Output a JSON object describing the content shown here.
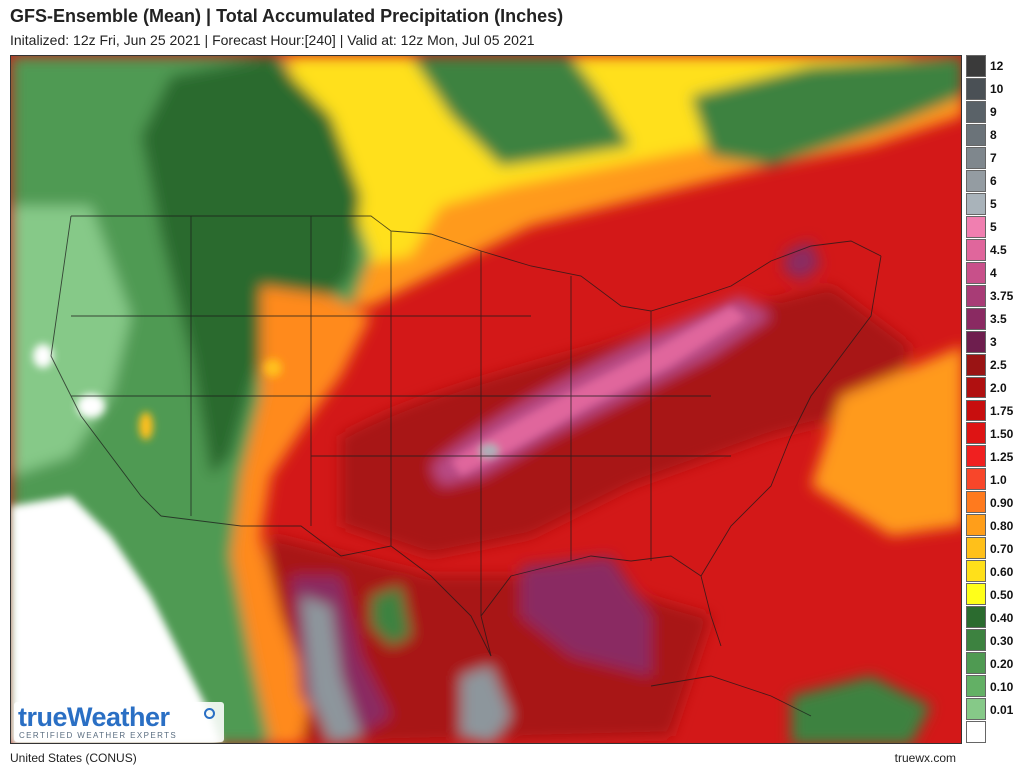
{
  "header": {
    "title": "GFS-Ensemble (Mean) | Total Accumulated Precipitation (Inches)",
    "subtitle": "Initalized: 12z Fri, Jun 25 2021 | Forecast Hour:[240] | Valid at: 12z Mon, Jul 05 2021"
  },
  "legend": [
    {
      "label": "12",
      "color": "#3a3a3a"
    },
    {
      "label": "10",
      "color": "#4a5055"
    },
    {
      "label": "9",
      "color": "#5a6268"
    },
    {
      "label": "8",
      "color": "#6b7379"
    },
    {
      "label": "7",
      "color": "#7f878d"
    },
    {
      "label": "6",
      "color": "#949ca2"
    },
    {
      "label": "5",
      "color": "#a9b3ba"
    },
    {
      "label": "5",
      "color": "#f07fb0"
    },
    {
      "label": "4.5",
      "color": "#e0669c"
    },
    {
      "label": "4",
      "color": "#c8508a"
    },
    {
      "label": "3.75",
      "color": "#a83c76"
    },
    {
      "label": "3.5",
      "color": "#8a2a62"
    },
    {
      "label": "3",
      "color": "#6e1e4e"
    },
    {
      "label": "2.5",
      "color": "#9a1414"
    },
    {
      "label": "2.0",
      "color": "#b01010"
    },
    {
      "label": "1.75",
      "color": "#c80e0e"
    },
    {
      "label": "1.50",
      "color": "#de1414"
    },
    {
      "label": "1.25",
      "color": "#f02020"
    },
    {
      "label": "1.0",
      "color": "#f8462a"
    },
    {
      "label": "0.90",
      "color": "#ff7a1e"
    },
    {
      "label": "0.80",
      "color": "#ff9e1a"
    },
    {
      "label": "0.70",
      "color": "#ffc01a"
    },
    {
      "label": "0.60",
      "color": "#ffe01a"
    },
    {
      "label": "0.50",
      "color": "#ffff1a"
    },
    {
      "label": "0.40",
      "color": "#2b6b2f"
    },
    {
      "label": "0.30",
      "color": "#3d8240"
    },
    {
      "label": "0.20",
      "color": "#4f9a52"
    },
    {
      "label": "0.10",
      "color": "#63b065"
    },
    {
      "label": "0.01",
      "color": "#86c988"
    },
    {
      "label": "",
      "color": "#ffffff"
    }
  ],
  "footer": {
    "region": "United States (CONUS)",
    "site": "truewx.com"
  },
  "logo": {
    "main": "trueWeather",
    "tagline": "CERTIFIED WEATHER EXPERTS"
  }
}
